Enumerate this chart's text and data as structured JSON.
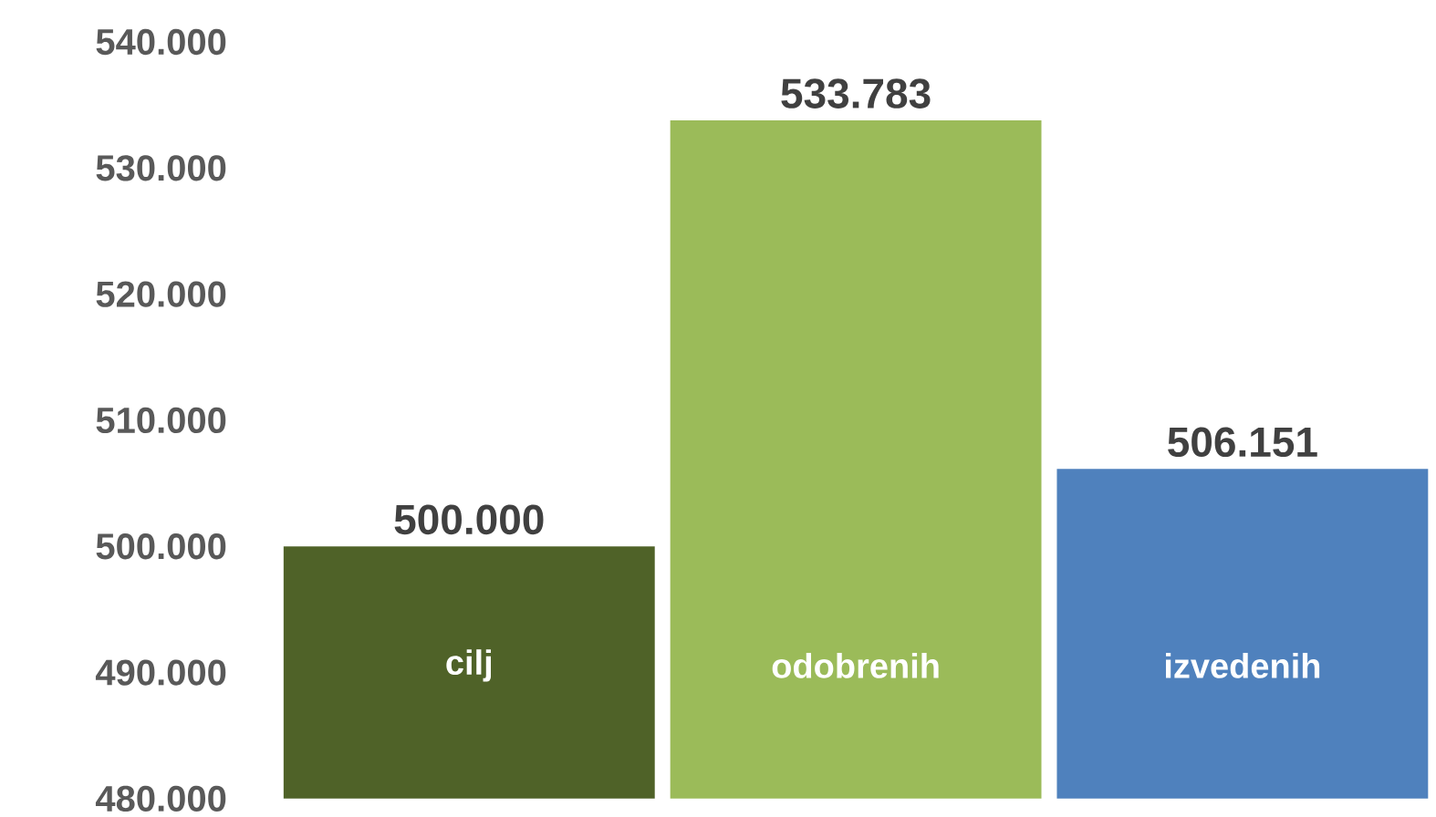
{
  "chart_data": {
    "type": "bar",
    "categories": [
      "cilj",
      "odobrenih",
      "izvedenih"
    ],
    "values": [
      500000,
      533783,
      506151
    ],
    "colors": [
      "#4f6228",
      "#9bbb59",
      "#4f81bd"
    ],
    "value_labels": [
      "500.000",
      "533.783",
      "506.151"
    ],
    "ylim": [
      480000,
      540000
    ],
    "yticks": [
      {
        "value": 480000,
        "label": "480.000"
      },
      {
        "value": 490000,
        "label": "490.000"
      },
      {
        "value": 500000,
        "label": "500.000"
      },
      {
        "value": 510000,
        "label": "510.000"
      },
      {
        "value": 520000,
        "label": "520.000"
      },
      {
        "value": 530000,
        "label": "530.000"
      },
      {
        "value": 540000,
        "label": "540.000"
      }
    ],
    "grid": false
  }
}
